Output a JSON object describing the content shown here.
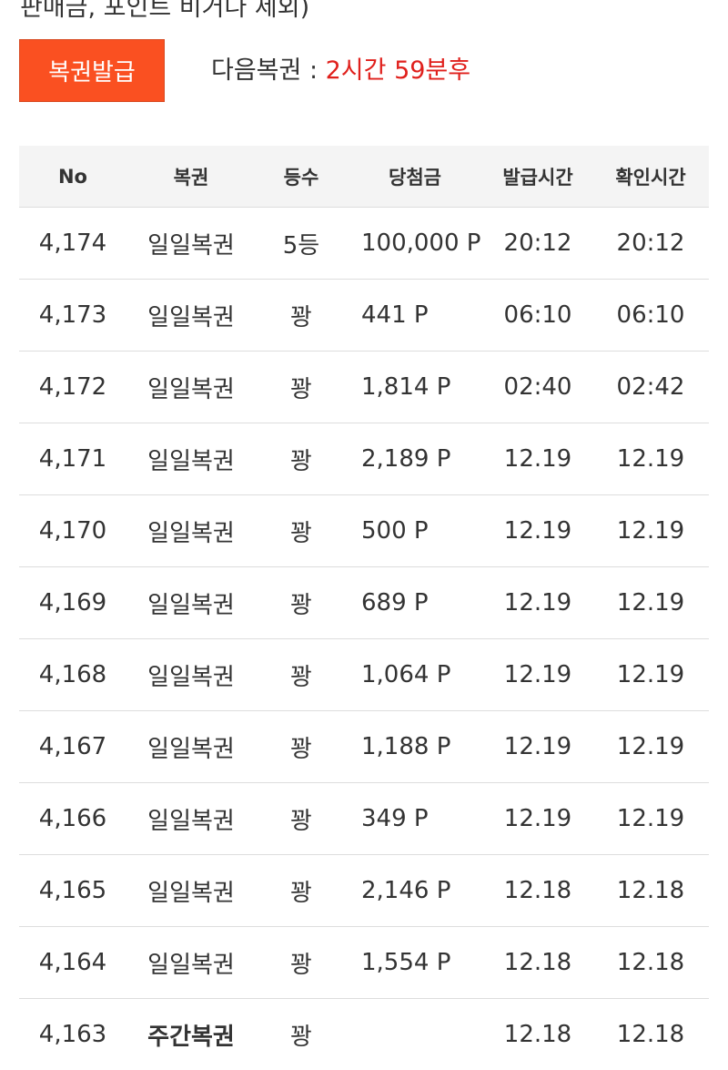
{
  "top_text": "판매금, 포인트 비거나 제외)",
  "issue_button": "복권발급",
  "next_label": "다음복권 : ",
  "next_time": "2시간 59분후",
  "colors": {
    "button": "#fa5021",
    "accent_red": "#e0201c",
    "header_bg": "#f4f4f4"
  },
  "table": {
    "headers": [
      "No",
      "복권",
      "등수",
      "당첨금",
      "발급시간",
      "확인시간"
    ],
    "rows": [
      [
        "4,174",
        "일일복권",
        "5등",
        "100,000 P",
        "20:12",
        "20:12"
      ],
      [
        "4,173",
        "일일복권",
        "꽝",
        "441 P",
        "06:10",
        "06:10"
      ],
      [
        "4,172",
        "일일복권",
        "꽝",
        "1,814 P",
        "02:40",
        "02:42"
      ],
      [
        "4,171",
        "일일복권",
        "꽝",
        "2,189 P",
        "12.19",
        "12.19"
      ],
      [
        "4,170",
        "일일복권",
        "꽝",
        "500 P",
        "12.19",
        "12.19"
      ],
      [
        "4,169",
        "일일복권",
        "꽝",
        "689 P",
        "12.19",
        "12.19"
      ],
      [
        "4,168",
        "일일복권",
        "꽝",
        "1,064 P",
        "12.19",
        "12.19"
      ],
      [
        "4,167",
        "일일복권",
        "꽝",
        "1,188 P",
        "12.19",
        "12.19"
      ],
      [
        "4,166",
        "일일복권",
        "꽝",
        "349 P",
        "12.19",
        "12.19"
      ],
      [
        "4,165",
        "일일복권",
        "꽝",
        "2,146 P",
        "12.18",
        "12.18"
      ],
      [
        "4,164",
        "일일복권",
        "꽝",
        "1,554 P",
        "12.18",
        "12.18"
      ],
      [
        "4,163",
        "주간복권",
        "꽝",
        "",
        "12.18",
        "12.18"
      ]
    ]
  }
}
